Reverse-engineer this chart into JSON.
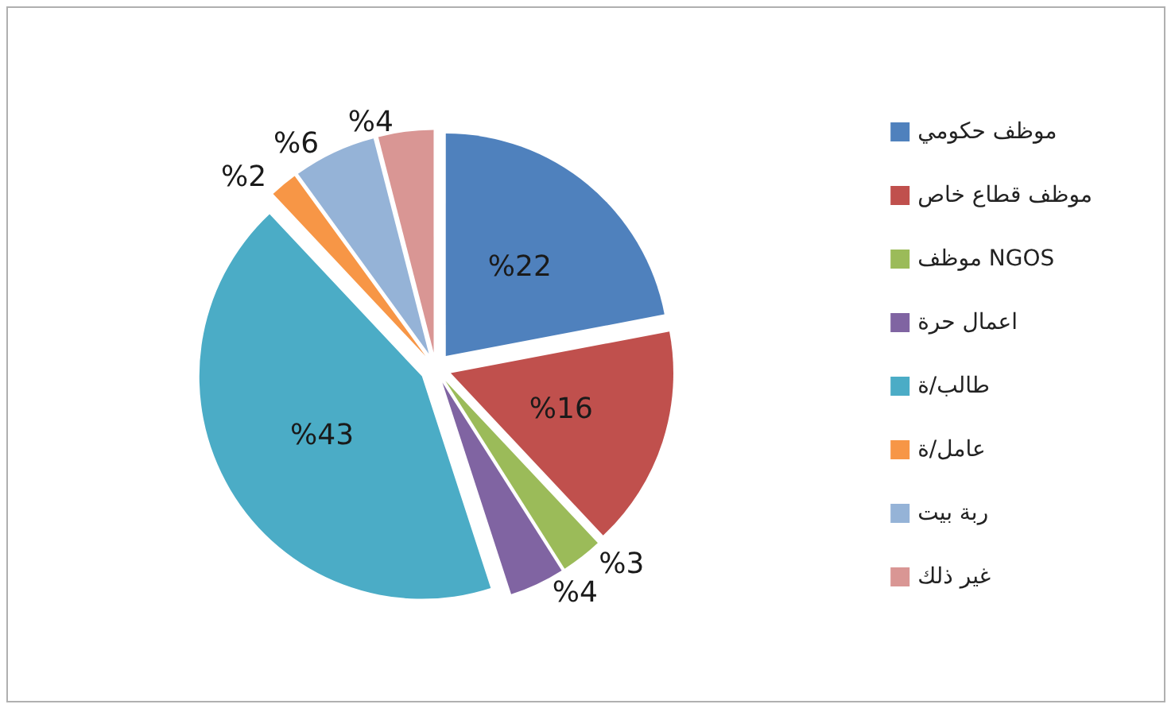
{
  "chart_data": {
    "type": "pie",
    "categories": [
      "موظف حكومي",
      "موظف قطاع خاص",
      "موظف NGOS",
      "اعمال حرة",
      "طالب/ة",
      "عامل/ة",
      "ربة بيت",
      "غير ذلك"
    ],
    "values": [
      22,
      16,
      3,
      4,
      43,
      2,
      6,
      4
    ],
    "value_labels": [
      "%22",
      "%16",
      "%3",
      "%4",
      "%43",
      "%2",
      "%6",
      "%4"
    ],
    "colors": [
      "#4f81bd",
      "#c0504d",
      "#9bbb59",
      "#8064a2",
      "#4bacc6",
      "#f79646",
      "#95b3d7",
      "#d99694"
    ],
    "legend": "right"
  }
}
